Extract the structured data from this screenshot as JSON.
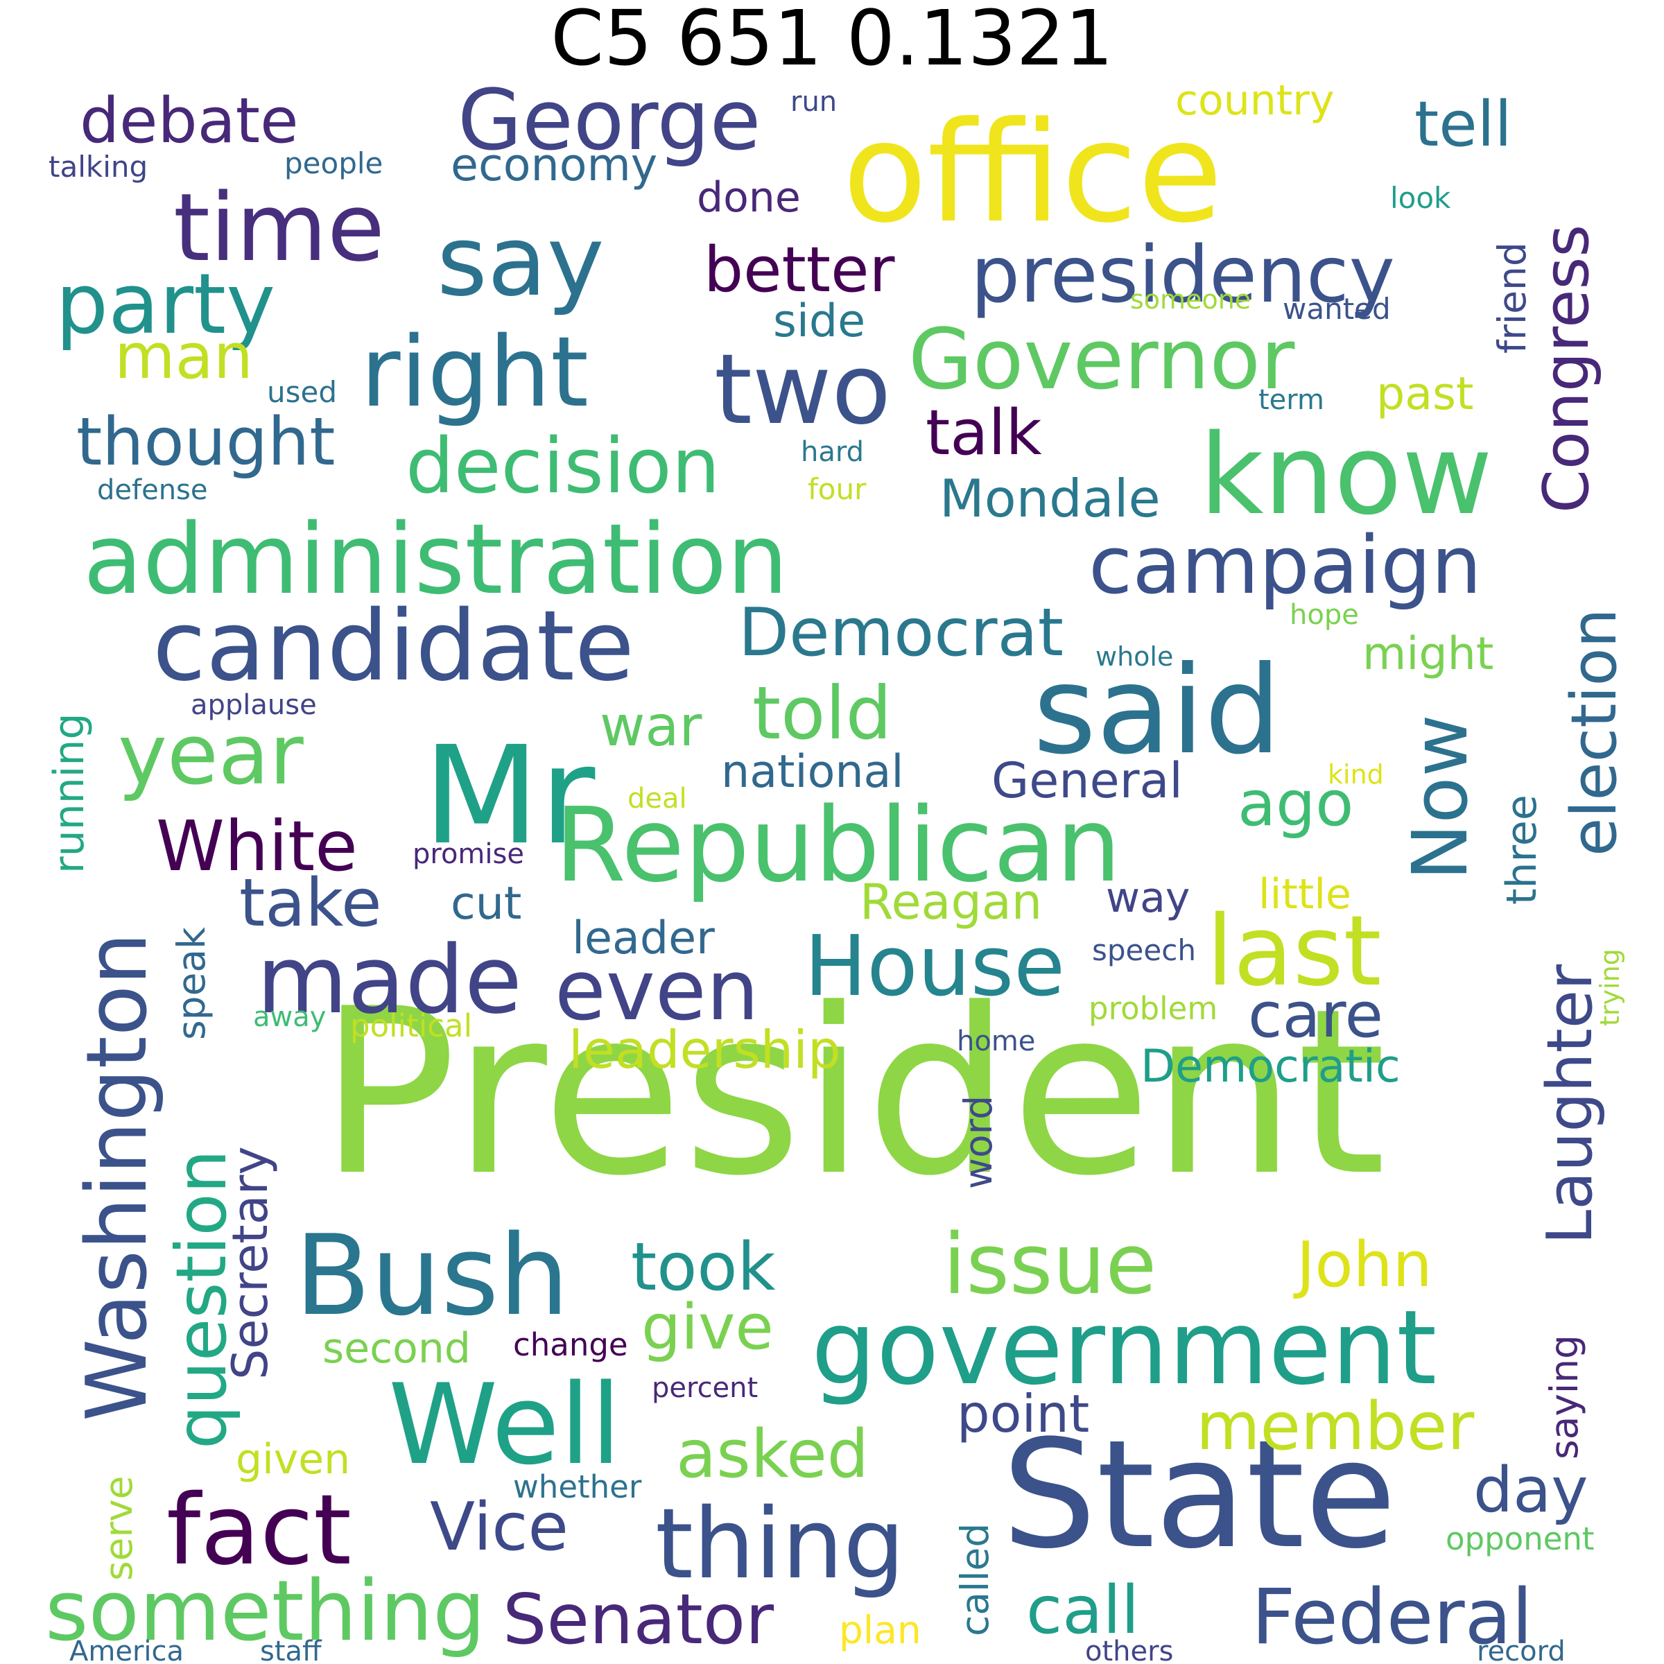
{
  "title": "C5 651 0.1321",
  "words": [
    {
      "text": "President",
      "color": "#8ed645"
    },
    {
      "text": "office",
      "color": "#f0e51c"
    },
    {
      "text": "State",
      "color": "#3b528b"
    },
    {
      "text": "Mr",
      "color": "#1fa187"
    },
    {
      "text": "said",
      "color": "#2c728e"
    },
    {
      "text": "Republican",
      "color": "#4ac16d"
    },
    {
      "text": "administration",
      "color": "#3fbc73"
    },
    {
      "text": "know",
      "color": "#4ac16d"
    },
    {
      "text": "government",
      "color": "#1f9e89"
    },
    {
      "text": "Bush",
      "color": "#2a768e"
    },
    {
      "text": "Well",
      "color": "#1fa187"
    },
    {
      "text": "say",
      "color": "#2c728e"
    },
    {
      "text": "candidate",
      "color": "#3b528b"
    },
    {
      "text": "right",
      "color": "#2c728e"
    },
    {
      "text": "two",
      "color": "#3b528b"
    },
    {
      "text": "George",
      "color": "#414487"
    },
    {
      "text": "Governor",
      "color": "#5ec962"
    },
    {
      "text": "last",
      "color": "#c2df23"
    },
    {
      "text": "time",
      "color": "#472f7d"
    },
    {
      "text": "party",
      "color": "#21918c"
    },
    {
      "text": "presidency",
      "color": "#3b528b"
    },
    {
      "text": "campaign",
      "color": "#3b528b"
    },
    {
      "text": "fact",
      "color": "#440154"
    },
    {
      "text": "thing",
      "color": "#3b528b"
    },
    {
      "text": "made",
      "color": "#414487"
    },
    {
      "text": "even",
      "color": "#414487"
    },
    {
      "text": "House",
      "color": "#25848e"
    },
    {
      "text": "year",
      "color": "#5ec962"
    },
    {
      "text": "Washington",
      "color": "#3b528b"
    },
    {
      "text": "something",
      "color": "#5ec962"
    },
    {
      "text": "issue",
      "color": "#7ad151"
    },
    {
      "text": "Now",
      "color": "#2c728e"
    },
    {
      "text": "White",
      "color": "#440154"
    },
    {
      "text": "decision",
      "color": "#3fbc73"
    },
    {
      "text": "Federal",
      "color": "#3b528b"
    },
    {
      "text": "question",
      "color": "#22a884"
    },
    {
      "text": "Senator",
      "color": "#482878"
    },
    {
      "text": "Laughter",
      "color": "#3e4989"
    },
    {
      "text": "election",
      "color": "#31688e"
    },
    {
      "text": "Democrat",
      "color": "#2a788e"
    },
    {
      "text": "Congress",
      "color": "#482878"
    },
    {
      "text": "told",
      "color": "#5ec962"
    },
    {
      "text": "took",
      "color": "#21918c"
    },
    {
      "text": "member",
      "color": "#c2df23"
    },
    {
      "text": "asked",
      "color": "#7ad151"
    },
    {
      "text": "Vice",
      "color": "#3e4989"
    },
    {
      "text": "take",
      "color": "#3b528b"
    },
    {
      "text": "thought",
      "color": "#31688e"
    },
    {
      "text": "call",
      "color": "#1f9e89"
    },
    {
      "text": "debate",
      "color": "#482878"
    },
    {
      "text": "man",
      "color": "#c2df23"
    },
    {
      "text": "John",
      "color": "#dde318"
    },
    {
      "text": "give",
      "color": "#7ad151"
    },
    {
      "text": "better",
      "color": "#440154"
    },
    {
      "text": "talk",
      "color": "#440154"
    },
    {
      "text": "ago",
      "color": "#3fbc73"
    },
    {
      "text": "day",
      "color": "#3b528b"
    },
    {
      "text": "care",
      "color": "#3b528b"
    },
    {
      "text": "point",
      "color": "#3e4989"
    },
    {
      "text": "war",
      "color": "#5ec962"
    },
    {
      "text": "tell",
      "color": "#2c728e"
    },
    {
      "text": "Mondale",
      "color": "#2a788e"
    },
    {
      "text": "Democratic",
      "color": "#1f9e89"
    },
    {
      "text": "Secretary",
      "color": "#414487"
    },
    {
      "text": "leadership",
      "color": "#c2df23"
    },
    {
      "text": "Reagan",
      "color": "#a0da39"
    },
    {
      "text": "General",
      "color": "#3e4989"
    },
    {
      "text": "saying",
      "color": "#482878"
    },
    {
      "text": "economy",
      "color": "#31688e"
    },
    {
      "text": "national",
      "color": "#31688e"
    },
    {
      "text": "running",
      "color": "#22a884"
    },
    {
      "text": "might",
      "color": "#7ad151"
    },
    {
      "text": "little",
      "color": "#dde318"
    },
    {
      "text": "past",
      "color": "#c2df23"
    },
    {
      "text": "cut",
      "color": "#31688e"
    },
    {
      "text": "leader",
      "color": "#31688e"
    },
    {
      "text": "way",
      "color": "#414487"
    },
    {
      "text": "side",
      "color": "#2a788e"
    },
    {
      "text": "done",
      "color": "#482878"
    },
    {
      "text": "speak",
      "color": "#31688e"
    },
    {
      "text": "friend",
      "color": "#3e4989"
    },
    {
      "text": "three",
      "color": "#2c728e"
    },
    {
      "text": "second",
      "color": "#7ad151"
    },
    {
      "text": "given",
      "color": "#c2df23"
    },
    {
      "text": "serve",
      "color": "#a0da39"
    },
    {
      "text": "called",
      "color": "#2a788e"
    },
    {
      "text": "word",
      "color": "#3e4989"
    },
    {
      "text": "country",
      "color": "#dde318"
    },
    {
      "text": "plan",
      "color": "#fde725"
    },
    {
      "text": "opponent",
      "color": "#5ec962"
    },
    {
      "text": "change",
      "color": "#440154"
    },
    {
      "text": "percent",
      "color": "#482878"
    },
    {
      "text": "political",
      "color": "#c2df23"
    },
    {
      "text": "whether",
      "color": "#2c728e"
    },
    {
      "text": "problem",
      "color": "#a0da39"
    },
    {
      "text": "speech",
      "color": "#3b528b"
    },
    {
      "text": "promise",
      "color": "#482878"
    },
    {
      "text": "applause",
      "color": "#414487"
    },
    {
      "text": "people",
      "color": "#31688e"
    },
    {
      "text": "talking",
      "color": "#414487"
    },
    {
      "text": "defense",
      "color": "#2c728e"
    },
    {
      "text": "used",
      "color": "#2c728e"
    },
    {
      "text": "away",
      "color": "#3fbc73"
    },
    {
      "text": "wanted",
      "color": "#3b528b"
    },
    {
      "text": "someone",
      "color": "#a0da39"
    },
    {
      "text": "look",
      "color": "#1f9e89"
    },
    {
      "text": "term",
      "color": "#2a788e"
    },
    {
      "text": "hard",
      "color": "#2a788e"
    },
    {
      "text": "four",
      "color": "#c2df23"
    },
    {
      "text": "hope",
      "color": "#7ad151"
    },
    {
      "text": "whole",
      "color": "#2a788e"
    },
    {
      "text": "kind",
      "color": "#dde318"
    },
    {
      "text": "deal",
      "color": "#c2df23"
    },
    {
      "text": "run",
      "color": "#3e4989"
    },
    {
      "text": "trying",
      "color": "#a0da39"
    },
    {
      "text": "home",
      "color": "#3b528b"
    },
    {
      "text": "America",
      "color": "#31688e"
    },
    {
      "text": "staff",
      "color": "#31688e"
    },
    {
      "text": "others",
      "color": "#414487"
    },
    {
      "text": "record",
      "color": "#31688e"
    }
  ]
}
